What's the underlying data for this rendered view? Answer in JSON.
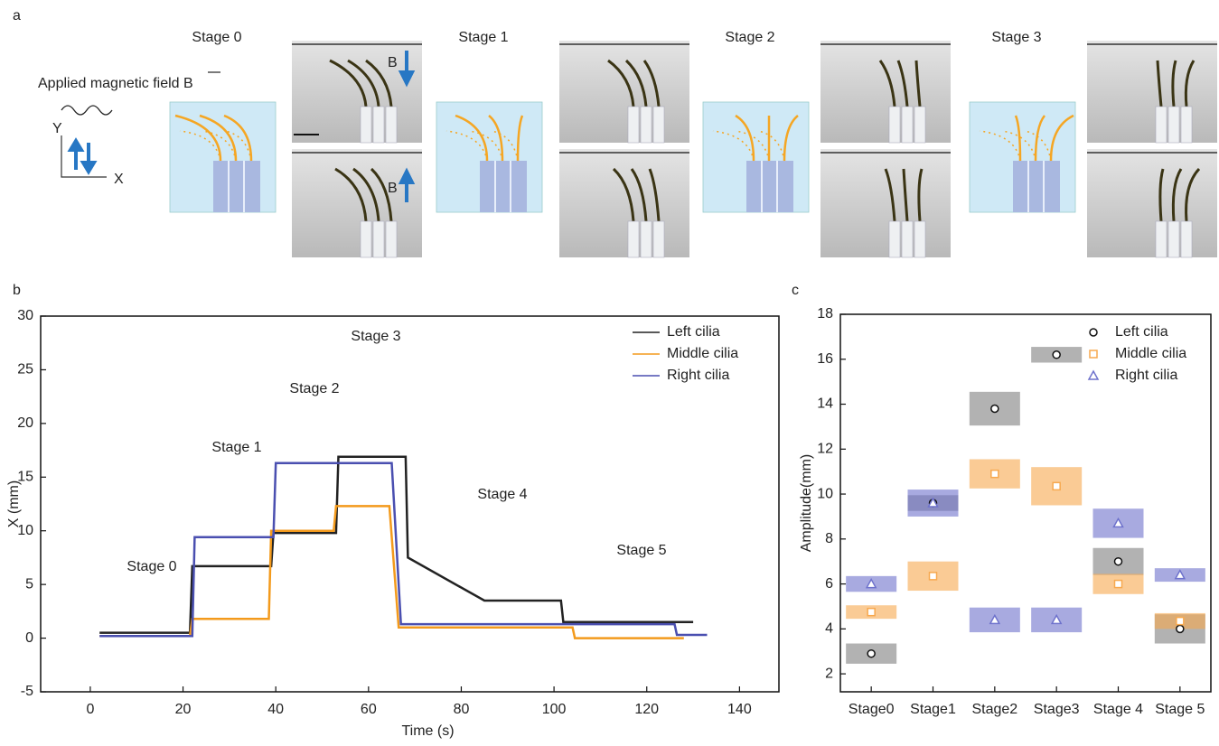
{
  "panel_a": {
    "panel": "a",
    "field_label": "Applied magnetic field B",
    "y_axis": "Y",
    "x_axis": "X",
    "field_up": "B",
    "field_down": "B",
    "stages": [
      "Stage 0",
      "Stage 1",
      "Stage 2",
      "Stage 3"
    ]
  },
  "chart_data": [
    {
      "type": "line",
      "panel": "b",
      "xlabel": "Time (s)",
      "ylabel": "X (mm)",
      "xlim": [
        -10.7,
        148.5
      ],
      "xticks": [
        0,
        20,
        40,
        60,
        80,
        100,
        120,
        140
      ],
      "ylim": [
        -5,
        30
      ],
      "yticks": [
        -5,
        0,
        5,
        10,
        15,
        20,
        25,
        30
      ],
      "legend": "upper right",
      "annotations": [
        "Stage 0",
        "Stage 1",
        "Stage 2",
        "Stage 3",
        "Stage 4",
        "Stage 5"
      ],
      "series": [
        {
          "name": "Left cilia",
          "color": "#222222",
          "x": [
            2,
            21.5,
            22,
            39,
            39.5,
            53,
            53.5,
            68,
            68.5,
            85,
            101.5,
            102,
            130
          ],
          "values": [
            0.5,
            0.5,
            6.7,
            6.7,
            9.8,
            9.8,
            16.9,
            16.9,
            7.5,
            3.5,
            3.5,
            1.5,
            1.5
          ]
        },
        {
          "name": "Middle cilia",
          "color": "#f39a1c",
          "x": [
            2,
            21.5,
            22,
            38.5,
            39,
            52.5,
            53,
            64.5,
            66.5,
            104,
            104.5,
            128
          ],
          "values": [
            0.2,
            0.2,
            1.8,
            1.8,
            10,
            10,
            12.3,
            12.3,
            1,
            1,
            0,
            0
          ]
        },
        {
          "name": "Right cilia",
          "color": "#4a4fb0",
          "x": [
            2,
            22,
            22.5,
            39.5,
            40,
            65,
            67,
            126,
            126.5,
            133
          ],
          "values": [
            0.2,
            0.2,
            9.4,
            9.4,
            16.3,
            16.3,
            1.3,
            1.3,
            0.3,
            0.3
          ]
        }
      ]
    },
    {
      "type": "range",
      "panel": "c",
      "ylabel": "Amplitude(mm)",
      "categories": [
        "Stage0",
        "Stage1",
        "Stage2",
        "Stage3",
        "Stage 4",
        "Stage 5"
      ],
      "ylim": [
        1.2,
        18
      ],
      "yticks": [
        2,
        4,
        6,
        8,
        10,
        12,
        14,
        16,
        18
      ],
      "legend": "upper right",
      "series": [
        {
          "name": "Left cilia",
          "color": "#7f7f7f",
          "marker": "circle",
          "values": [
            2.9,
            9.6,
            13.8,
            16.2,
            7.0,
            4.0
          ],
          "errors": [
            0.45,
            0.35,
            0.75,
            0.35,
            0.6,
            0.65
          ]
        },
        {
          "name": "Middle cilia",
          "color": "#f7a94f",
          "marker": "square",
          "values": [
            4.75,
            6.35,
            10.9,
            10.35,
            6.0,
            4.35
          ],
          "errors": [
            0.3,
            0.65,
            0.65,
            0.85,
            0.45,
            0.35
          ]
        },
        {
          "name": "Right cilia",
          "color": "#6e72cc",
          "marker": "triangle",
          "values": [
            6.0,
            9.6,
            4.4,
            4.4,
            8.7,
            6.4
          ],
          "errors": [
            0.35,
            0.6,
            0.55,
            0.55,
            0.65,
            0.3
          ]
        }
      ]
    }
  ]
}
